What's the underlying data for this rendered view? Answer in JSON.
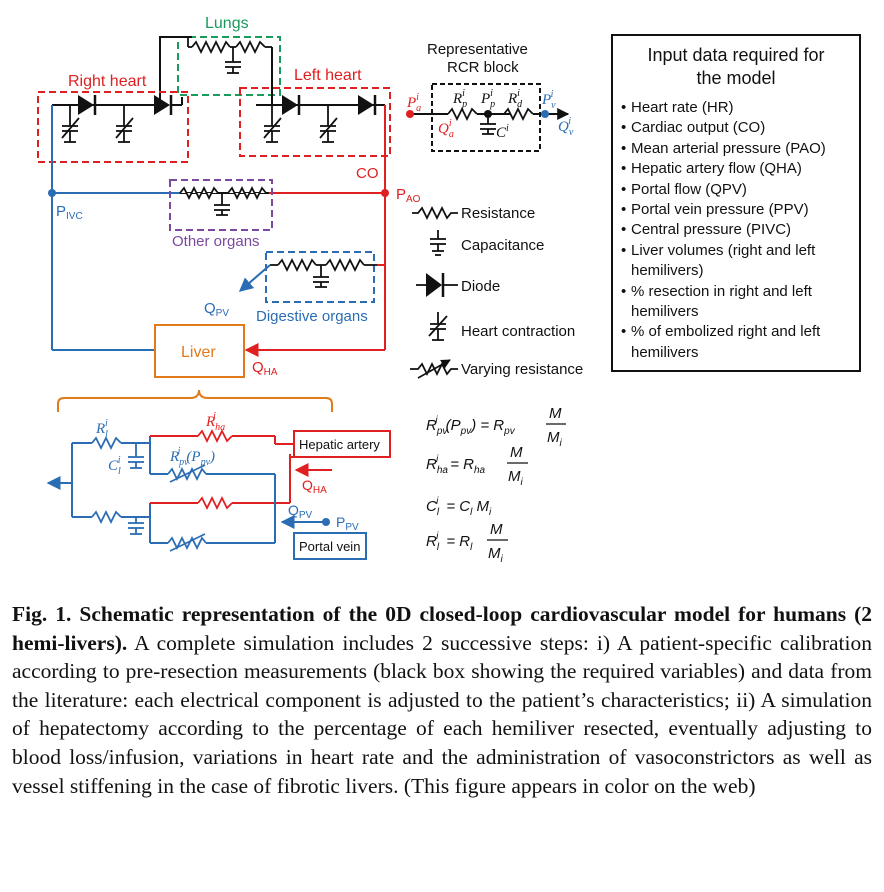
{
  "figure": {
    "labels": {
      "lungs": "Lungs",
      "right_heart": "Right heart",
      "left_heart": "Left heart",
      "rcr_title_1": "Representative",
      "rcr_title_2": "RCR block",
      "other_organs": "Other organs",
      "digestive_organs": "Digestive organs",
      "liver": "Liver",
      "co": "CO",
      "pao": "P",
      "pao_sub": "AO",
      "pivc": "P",
      "pivc_sub": "IVC",
      "qpv": "Q",
      "qpv_sub": "PV",
      "qha": "Q",
      "qha_sub": "HA",
      "hepatic_artery": "Hepatic artery",
      "portal_vein": "Portal vein",
      "ppv": "P",
      "ppv_sub": "PV"
    },
    "legend": [
      {
        "icon": "resistance-icon",
        "label": "Resistance"
      },
      {
        "icon": "capacitance-icon",
        "label": "Capacitance"
      },
      {
        "icon": "diode-icon",
        "label": "Diode"
      },
      {
        "icon": "heart-contraction-icon",
        "label": "Heart contraction"
      },
      {
        "icon": "varying-resistance-icon",
        "label": "Varying resistance"
      }
    ],
    "colors": {
      "red": "#e02020",
      "blue": "#2a6db4",
      "green": "#1a9a5c",
      "purple": "#7b4a9e",
      "orange": "#e07a1a",
      "black": "#111111"
    }
  },
  "input_box": {
    "title_1": "Input data required for",
    "title_2": "the model",
    "items": [
      "Heart rate (HR)",
      "Cardiac output (CO)",
      "Mean arterial pressure (PAO)",
      "Hepatic artery flow (QHA)",
      "Portal flow (QPV)",
      "Portal vein pressure (PPV)",
      "Central pressure (PIVC)",
      "Liver volumes (right and left hemilivers)",
      "% resection in right and left hemilivers",
      "% of embolized right and left hemilivers"
    ]
  },
  "equations": [
    {
      "lhs": "R^i_pv (P_pv)",
      "rhs": "R_pv M/M_i"
    },
    {
      "lhs": "R^i_ha",
      "rhs": "R_ha M/M_i"
    },
    {
      "lhs": "C^i_l",
      "rhs": "C_l M_i"
    },
    {
      "lhs": "R^i_l",
      "rhs": "R_l M/M_i"
    }
  ],
  "caption": {
    "bold": "Fig. 1. Schematic representation of the 0D closed-loop cardiovascular model for humans (2 hemi-livers).",
    "text": "A complete simulation includes 2 successive steps: i) A patient-specific calibration according to pre-resection measurements (black box showing the required variables) and data from the literature: each electrical component is adjusted to the patient’s characteristics; ii) A simulation of hepatectomy according to the percentage of each hemiliver resected, eventually adjusting to blood loss/infusion, variations in heart rate and the administration of vasoconstrictors as well as vessel stiffening in the case of fibrotic livers. (This figure appears in color on the web)"
  }
}
